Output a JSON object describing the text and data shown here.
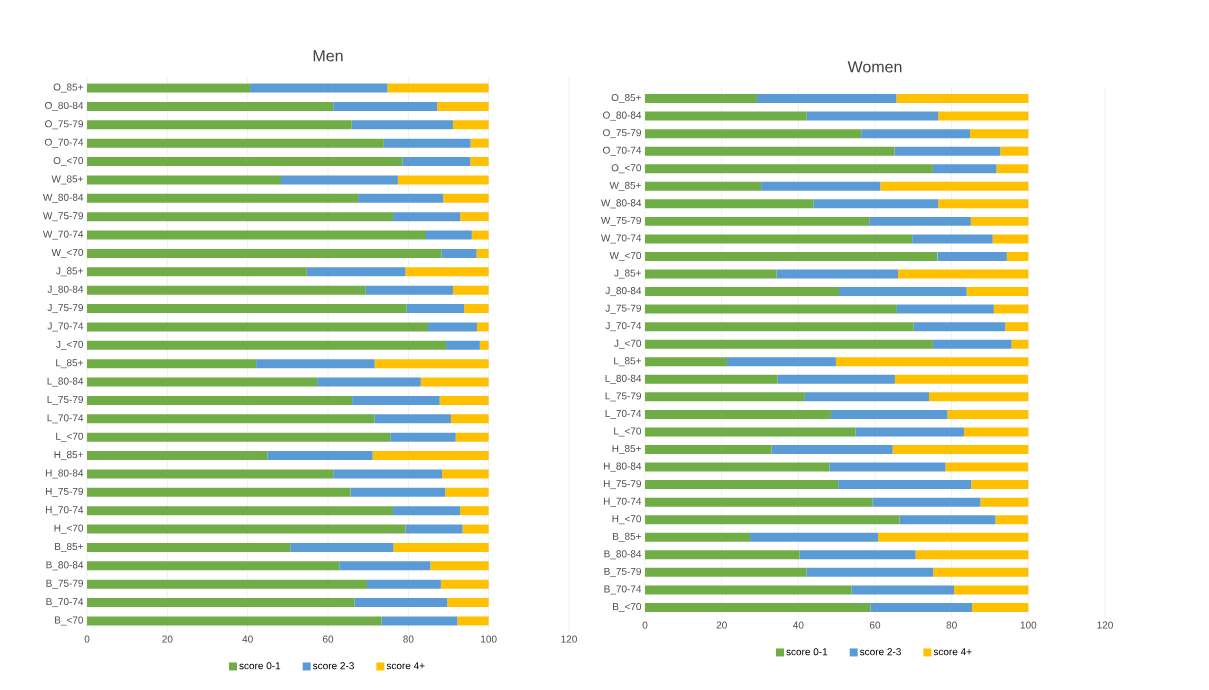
{
  "chart_data": [
    {
      "type": "bar",
      "title": "Men",
      "orientation": "horizontal",
      "stacked": true,
      "grid": "x",
      "legend": "bottom",
      "xlim": [
        0,
        120
      ],
      "xticks": [
        0,
        20,
        40,
        60,
        80,
        100,
        120
      ],
      "categories": [
        "O_85+",
        "O_80-84",
        "O_75-79",
        "O_70-74",
        "O_<70",
        "W_85+",
        "W_80-84",
        "W_75-79",
        "W_70-74",
        "W_<70",
        "J_85+",
        "J_80-84",
        "J_75-79",
        "J_70-74",
        "J_<70",
        "L_85+",
        "L_80-84",
        "L_75-79",
        "L_70-74",
        "L_<70",
        "H_85+",
        "H_80-84",
        "H_75-79",
        "H_70-74",
        "H_<70",
        "B_85+",
        "B_80-84",
        "B_75-79",
        "B_70-74",
        "B_<70"
      ],
      "series": [
        {
          "name": "score 0-1",
          "color": "#70ad47",
          "values": [
            40.6,
            61.3,
            65.9,
            73.9,
            78.6,
            48.3,
            67.5,
            76.2,
            84.4,
            88.2,
            54.7,
            69.4,
            79.6,
            84.9,
            89.4,
            42.1,
            57.3,
            66.0,
            71.6,
            75.5,
            44.9,
            61.3,
            65.6,
            76.2,
            79.3,
            50.6,
            62.8,
            69.7,
            66.6,
            73.3
          ]
        },
        {
          "name": "score 2-3",
          "color": "#5b9bd5",
          "values": [
            34.2,
            25.9,
            25.2,
            21.6,
            16.8,
            29.1,
            21.2,
            16.7,
            11.4,
            8.8,
            24.6,
            21.7,
            14.3,
            12.2,
            8.4,
            29.5,
            25.8,
            21.8,
            19.0,
            16.3,
            26.2,
            27.1,
            23.6,
            16.7,
            14.2,
            25.7,
            22.7,
            18.4,
            23.1,
            18.9
          ]
        },
        {
          "name": "score 4+",
          "color": "#ffc000",
          "values": [
            25.2,
            12.8,
            8.9,
            4.5,
            4.6,
            22.6,
            11.3,
            7.1,
            4.2,
            3.0,
            20.7,
            8.9,
            6.1,
            2.9,
            2.2,
            28.4,
            16.9,
            12.2,
            9.4,
            8.2,
            28.9,
            11.6,
            10.8,
            7.1,
            6.5,
            23.7,
            14.5,
            11.9,
            10.3,
            7.8
          ]
        }
      ]
    },
    {
      "type": "bar",
      "title": "Women",
      "orientation": "horizontal",
      "stacked": true,
      "grid": "x",
      "legend": "bottom",
      "xlim": [
        0,
        120
      ],
      "xticks": [
        0,
        20,
        40,
        60,
        80,
        100,
        120
      ],
      "categories": [
        "O_85+",
        "O_80-84",
        "O_75-79",
        "O_70-74",
        "O_<70",
        "W_85+",
        "W_80-84",
        "W_75-79",
        "W_70-74",
        "W_<70",
        "J_85+",
        "J_80-84",
        "J_75-79",
        "J_70-74",
        "J_<70",
        "L_85+",
        "L_80-84",
        "L_75-79",
        "L_70-74",
        "L_<70",
        "H_85+",
        "H_80-84",
        "H_75-79",
        "H_70-74",
        "H_<70",
        "B_85+",
        "B_80-84",
        "B_75-79",
        "B_70-74",
        "B_<70"
      ],
      "series": [
        {
          "name": "score 0-1",
          "color": "#70ad47",
          "values": [
            29.2,
            42.2,
            56.4,
            65.1,
            75.1,
            30.3,
            43.9,
            58.5,
            69.7,
            76.3,
            34.3,
            50.6,
            65.7,
            70.1,
            75.1,
            21.4,
            34.6,
            41.7,
            48.5,
            54.9,
            33.0,
            48.1,
            50.4,
            59.4,
            66.4,
            27.4,
            40.3,
            42.1,
            53.9,
            58.8
          ]
        },
        {
          "name": "score 2-3",
          "color": "#5b9bd5",
          "values": [
            36.4,
            34.3,
            28.4,
            27.6,
            16.6,
            31.1,
            32.6,
            26.5,
            21.0,
            18.1,
            31.7,
            33.3,
            25.3,
            23.9,
            20.5,
            28.4,
            30.6,
            32.4,
            30.4,
            28.3,
            31.6,
            30.3,
            34.7,
            28.1,
            25.0,
            33.4,
            30.3,
            33.1,
            26.7,
            26.5
          ]
        },
        {
          "name": "score 4+",
          "color": "#ffc000",
          "values": [
            34.4,
            23.5,
            15.2,
            7.3,
            8.3,
            38.6,
            23.5,
            15.0,
            9.3,
            5.6,
            34.0,
            16.1,
            9.0,
            6.0,
            4.4,
            50.2,
            34.7,
            25.9,
            21.1,
            16.8,
            35.4,
            21.5,
            14.9,
            12.5,
            8.5,
            39.2,
            29.4,
            24.8,
            19.4,
            14.7
          ]
        }
      ]
    }
  ]
}
